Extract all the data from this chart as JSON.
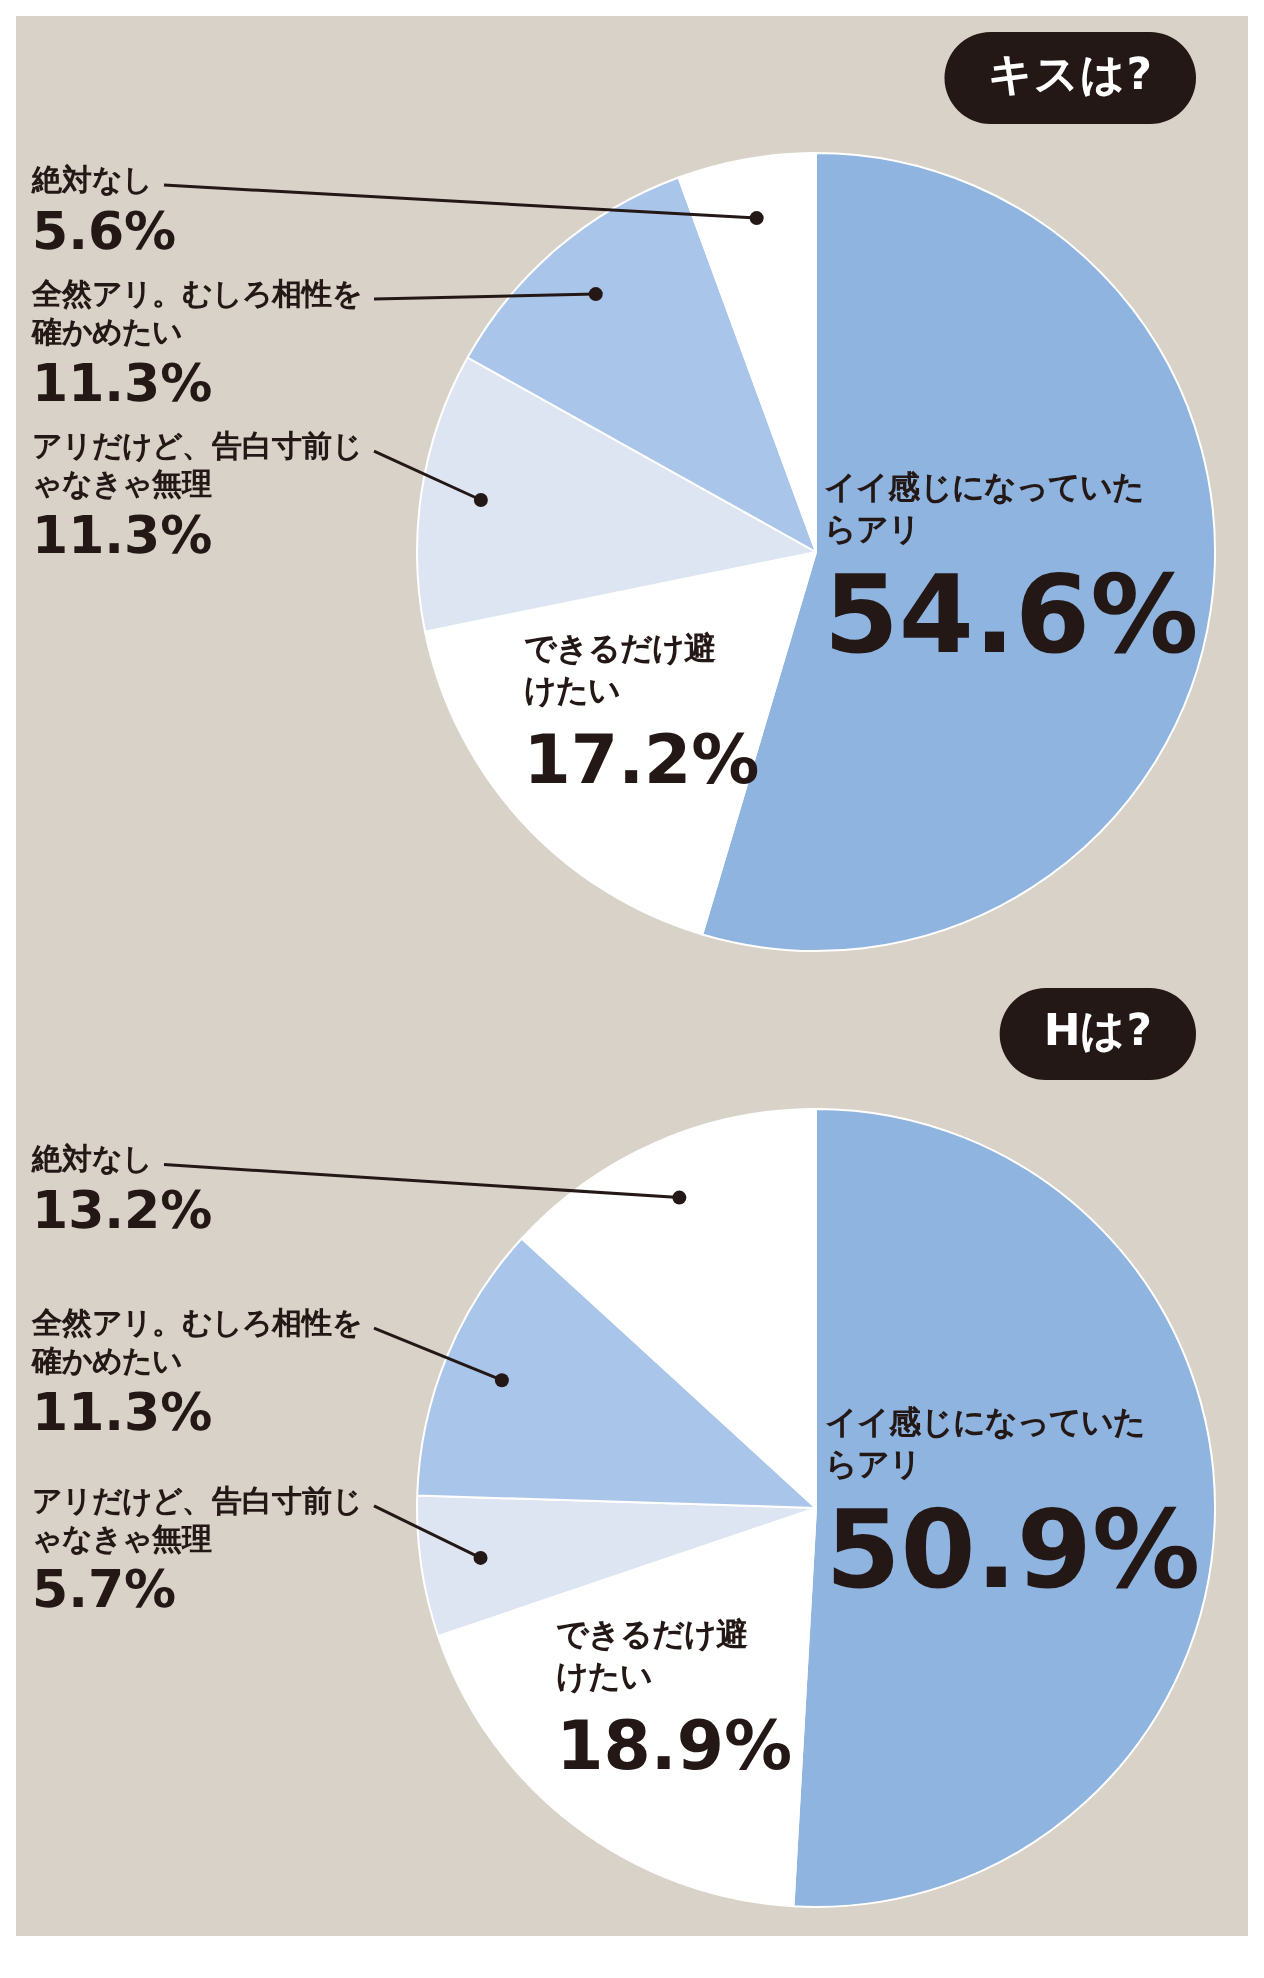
{
  "chart_data": [
    {
      "type": "pie",
      "title": "キスは?",
      "categories": [
        "イイ感じになっていたらアリ",
        "できるだけ避けたい",
        "アリだけど、告白寸前じゃなきゃ無理",
        "全然アリ。むしろ相性を確かめたい",
        "絶対なし"
      ],
      "values": [
        54.6,
        17.2,
        11.3,
        11.3,
        5.6
      ],
      "colors": [
        "#8fb4e0",
        "#ffffff",
        "#dde5f2",
        "#a9c6ea",
        "#ffffff"
      ],
      "value_labels": [
        "54.6%",
        "17.2%",
        "11.3%",
        "11.3%",
        "5.6%"
      ]
    },
    {
      "type": "pie",
      "title": "Hは?",
      "categories": [
        "イイ感じになっていたらアリ",
        "できるだけ避けたい",
        "アリだけど、告白寸前じゃなきゃ無理",
        "全然アリ。むしろ相性を確かめたい",
        "絶対なし"
      ],
      "values": [
        50.9,
        18.9,
        5.7,
        11.3,
        13.2
      ],
      "colors": [
        "#8fb4e0",
        "#ffffff",
        "#dde5f2",
        "#a9c6ea",
        "#ffffff"
      ],
      "value_labels": [
        "50.9%",
        "18.9%",
        "5.7%",
        "11.3%",
        "13.2%"
      ]
    }
  ]
}
